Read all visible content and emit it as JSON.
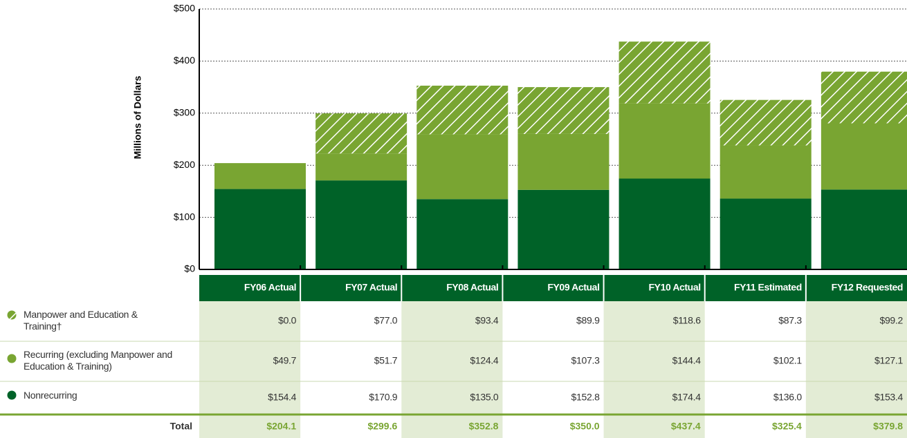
{
  "chart_data": {
    "type": "bar",
    "stacked": true,
    "y_label": "Millions of Dollars",
    "categories": [
      "FY06 Actual",
      "FY07 Actual",
      "FY08 Actual",
      "FY09 Actual",
      "FY10 Actual",
      "FY11 Estimated",
      "FY12 Requested"
    ],
    "series": [
      {
        "name": "Manpower and Education & Training†",
        "color": "#79a532",
        "hatch": true,
        "values": [
          0.0,
          77.0,
          93.4,
          89.9,
          118.6,
          87.3,
          99.2
        ],
        "value_labels": [
          "$0.0",
          "$77.0",
          "$93.4",
          "$89.9",
          "$118.6",
          "$87.3",
          "$99.2"
        ]
      },
      {
        "name": "Recurring (excluding Manpower and Education & Training)",
        "color": "#79a532",
        "hatch": false,
        "values": [
          49.7,
          51.7,
          124.4,
          107.3,
          144.4,
          102.1,
          127.1
        ],
        "value_labels": [
          "$49.7",
          "$51.7",
          "$124.4",
          "$107.3",
          "$144.4",
          "$102.1",
          "$127.1"
        ]
      },
      {
        "name": "Nonrecurring",
        "color": "#006228",
        "hatch": false,
        "values": [
          154.4,
          170.9,
          135.0,
          152.8,
          174.4,
          136.0,
          153.4
        ],
        "value_labels": [
          "$154.4",
          "$170.9",
          "$135.0",
          "$152.8",
          "$174.4",
          "$136.0",
          "$153.4"
        ]
      }
    ],
    "total_label": "Total",
    "totals": [
      "$204.1",
      "$299.6",
      "$352.8",
      "$350.0",
      "$437.4",
      "$325.4",
      "$379.8"
    ],
    "ylim": [
      0,
      500
    ],
    "yticks": [
      {
        "value": 0,
        "label": "$0"
      },
      {
        "value": 100,
        "label": "$100"
      },
      {
        "value": 200,
        "label": "$200"
      },
      {
        "value": 300,
        "label": "$300"
      },
      {
        "value": 400,
        "label": "$400"
      },
      {
        "value": 500,
        "label": "$500"
      }
    ],
    "grid": true
  }
}
